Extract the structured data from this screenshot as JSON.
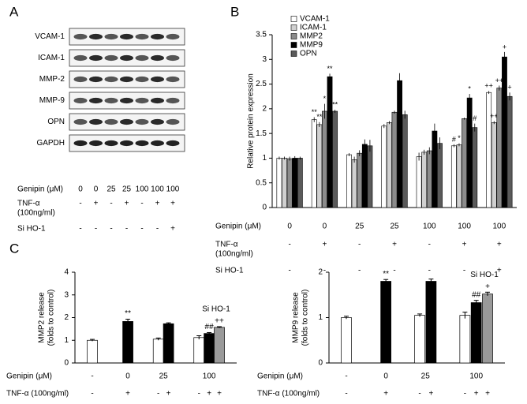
{
  "panel_labels": [
    "A",
    "B",
    "C"
  ],
  "blot": {
    "proteins": [
      "VCAM-1",
      "ICAM-1",
      "MMP-2",
      "MMP-9",
      "OPN",
      "GAPDH"
    ],
    "conditions": [
      {
        "label": "Genipin (μM)",
        "values": [
          "0",
          "0",
          "25",
          "25",
          "100",
          "100",
          "100"
        ]
      },
      {
        "label_lines": [
          "TNF-α",
          "(100ng/ml)"
        ],
        "values": [
          "-",
          "+",
          "-",
          "+",
          "-",
          "+",
          "+"
        ]
      },
      {
        "label": "Si HO-1",
        "values": [
          "-",
          "-",
          "-",
          "-",
          "-",
          "-",
          "+"
        ]
      }
    ]
  },
  "chart_data": [
    {
      "type": "grouped-bar",
      "ylabel": "Relative protein expression",
      "ylim": [
        0,
        3.5
      ],
      "yticks": [
        0,
        0.5,
        1,
        1.5,
        2,
        2.5,
        3,
        3.5
      ],
      "legend": "top-left",
      "series": [
        {
          "name": "VCAM-1",
          "color": "#ffffff",
          "values": [
            1.0,
            1.78,
            1.07,
            1.65,
            1.03,
            1.25,
            2.33
          ],
          "errors": [
            0.03,
            0.05,
            0.03,
            0.04,
            0.08,
            0.03,
            0.03
          ],
          "markers": [
            null,
            "**",
            null,
            null,
            null,
            "#",
            "++"
          ]
        },
        {
          "name": "ICAM-1",
          "color": "#d0d0d0",
          "values": [
            1.0,
            1.68,
            0.97,
            1.72,
            1.12,
            1.27,
            1.72
          ],
          "errors": [
            0.03,
            0.05,
            0.06,
            0.03,
            0.05,
            0.03,
            0.03
          ],
          "markers": [
            null,
            "**",
            null,
            null,
            null,
            "*",
            "++"
          ]
        },
        {
          "name": "MMP2",
          "color": "#8c8c8c",
          "values": [
            0.99,
            1.95,
            1.1,
            1.93,
            1.15,
            1.8,
            2.42
          ],
          "errors": [
            0.04,
            0.15,
            0.06,
            0.03,
            0.07,
            0.02,
            0.05
          ],
          "markers": [
            null,
            "*",
            null,
            null,
            null,
            null,
            "++"
          ]
        },
        {
          "name": "MMP9",
          "color": "#000000",
          "values": [
            1.0,
            2.65,
            1.28,
            2.57,
            1.55,
            2.22,
            3.05
          ],
          "errors": [
            0.04,
            0.06,
            0.1,
            0.15,
            0.15,
            0.08,
            0.1
          ],
          "markers": [
            null,
            "**",
            null,
            null,
            null,
            "*",
            "+"
          ]
        },
        {
          "name": "OPN",
          "color": "#5a5a5a",
          "values": [
            1.0,
            1.95,
            1.25,
            1.88,
            1.3,
            1.62,
            2.25
          ],
          "errors": [
            0.03,
            0.03,
            0.12,
            0.08,
            0.12,
            0.08,
            0.08
          ],
          "markers": [
            null,
            "**",
            null,
            null,
            null,
            "#",
            "+"
          ]
        }
      ],
      "conditions": [
        {
          "label": "Genipin (μM)",
          "values": [
            "0",
            "0",
            "25",
            "25",
            "100",
            "100",
            "100"
          ]
        },
        {
          "label_lines": [
            "TNF-α",
            "(100ng/ml)"
          ],
          "values": [
            "-",
            "+",
            "-",
            "+",
            "-",
            "+",
            "+"
          ]
        },
        {
          "label": "Si HO-1",
          "values": [
            "-",
            "-",
            "-",
            "-",
            "-",
            "-",
            "+"
          ]
        }
      ]
    },
    {
      "type": "bar",
      "ylabel_lines": [
        "MMP2 release",
        "(folds to  control)"
      ],
      "ylim": [
        0,
        4
      ],
      "yticks": [
        0,
        1,
        2,
        3,
        4
      ],
      "values": [
        1.0,
        1.83,
        1.05,
        1.73,
        1.12,
        1.3,
        1.57
      ],
      "errors": [
        0.04,
        0.1,
        0.05,
        0.04,
        0.08,
        0.04,
        0.03
      ],
      "colors": [
        "#ffffff",
        "#000000",
        "#ffffff",
        "#000000",
        "#ffffff",
        "#000000",
        "#9a9a9a"
      ],
      "markers": [
        null,
        "**",
        null,
        null,
        null,
        "##",
        "++"
      ],
      "annotation": "Si HO-1",
      "conditions": [
        {
          "label": "Genipin (μM)",
          "values": [
            "-",
            "0",
            "25",
            null,
            "100",
            null,
            null
          ]
        },
        {
          "label": "TNF-α (100ng/ml)",
          "values": [
            "-",
            "+",
            "-",
            "+",
            "-",
            "+",
            "+"
          ]
        }
      ]
    },
    {
      "type": "bar",
      "ylabel_lines": [
        "MMP9 release",
        "(folds to  control)"
      ],
      "ylim": [
        0,
        2
      ],
      "yticks": [
        0,
        1,
        2
      ],
      "values": [
        1.0,
        1.8,
        1.05,
        1.8,
        1.05,
        1.33,
        1.52
      ],
      "errors": [
        0.03,
        0.04,
        0.03,
        0.05,
        0.07,
        0.05,
        0.04
      ],
      "colors": [
        "#ffffff",
        "#000000",
        "#ffffff",
        "#000000",
        "#ffffff",
        "#000000",
        "#9a9a9a"
      ],
      "markers": [
        null,
        "**",
        null,
        null,
        null,
        "##",
        "+"
      ],
      "annotation": "Si HO-1",
      "conditions": [
        {
          "label": "Genipin (μM)",
          "values": [
            "-",
            "0",
            "25",
            null,
            "100",
            null,
            null
          ]
        },
        {
          "label": "TNF-α (100ng/ml)",
          "values": [
            "-",
            "+",
            "-",
            "+",
            "-",
            "+",
            "+"
          ]
        }
      ]
    }
  ]
}
